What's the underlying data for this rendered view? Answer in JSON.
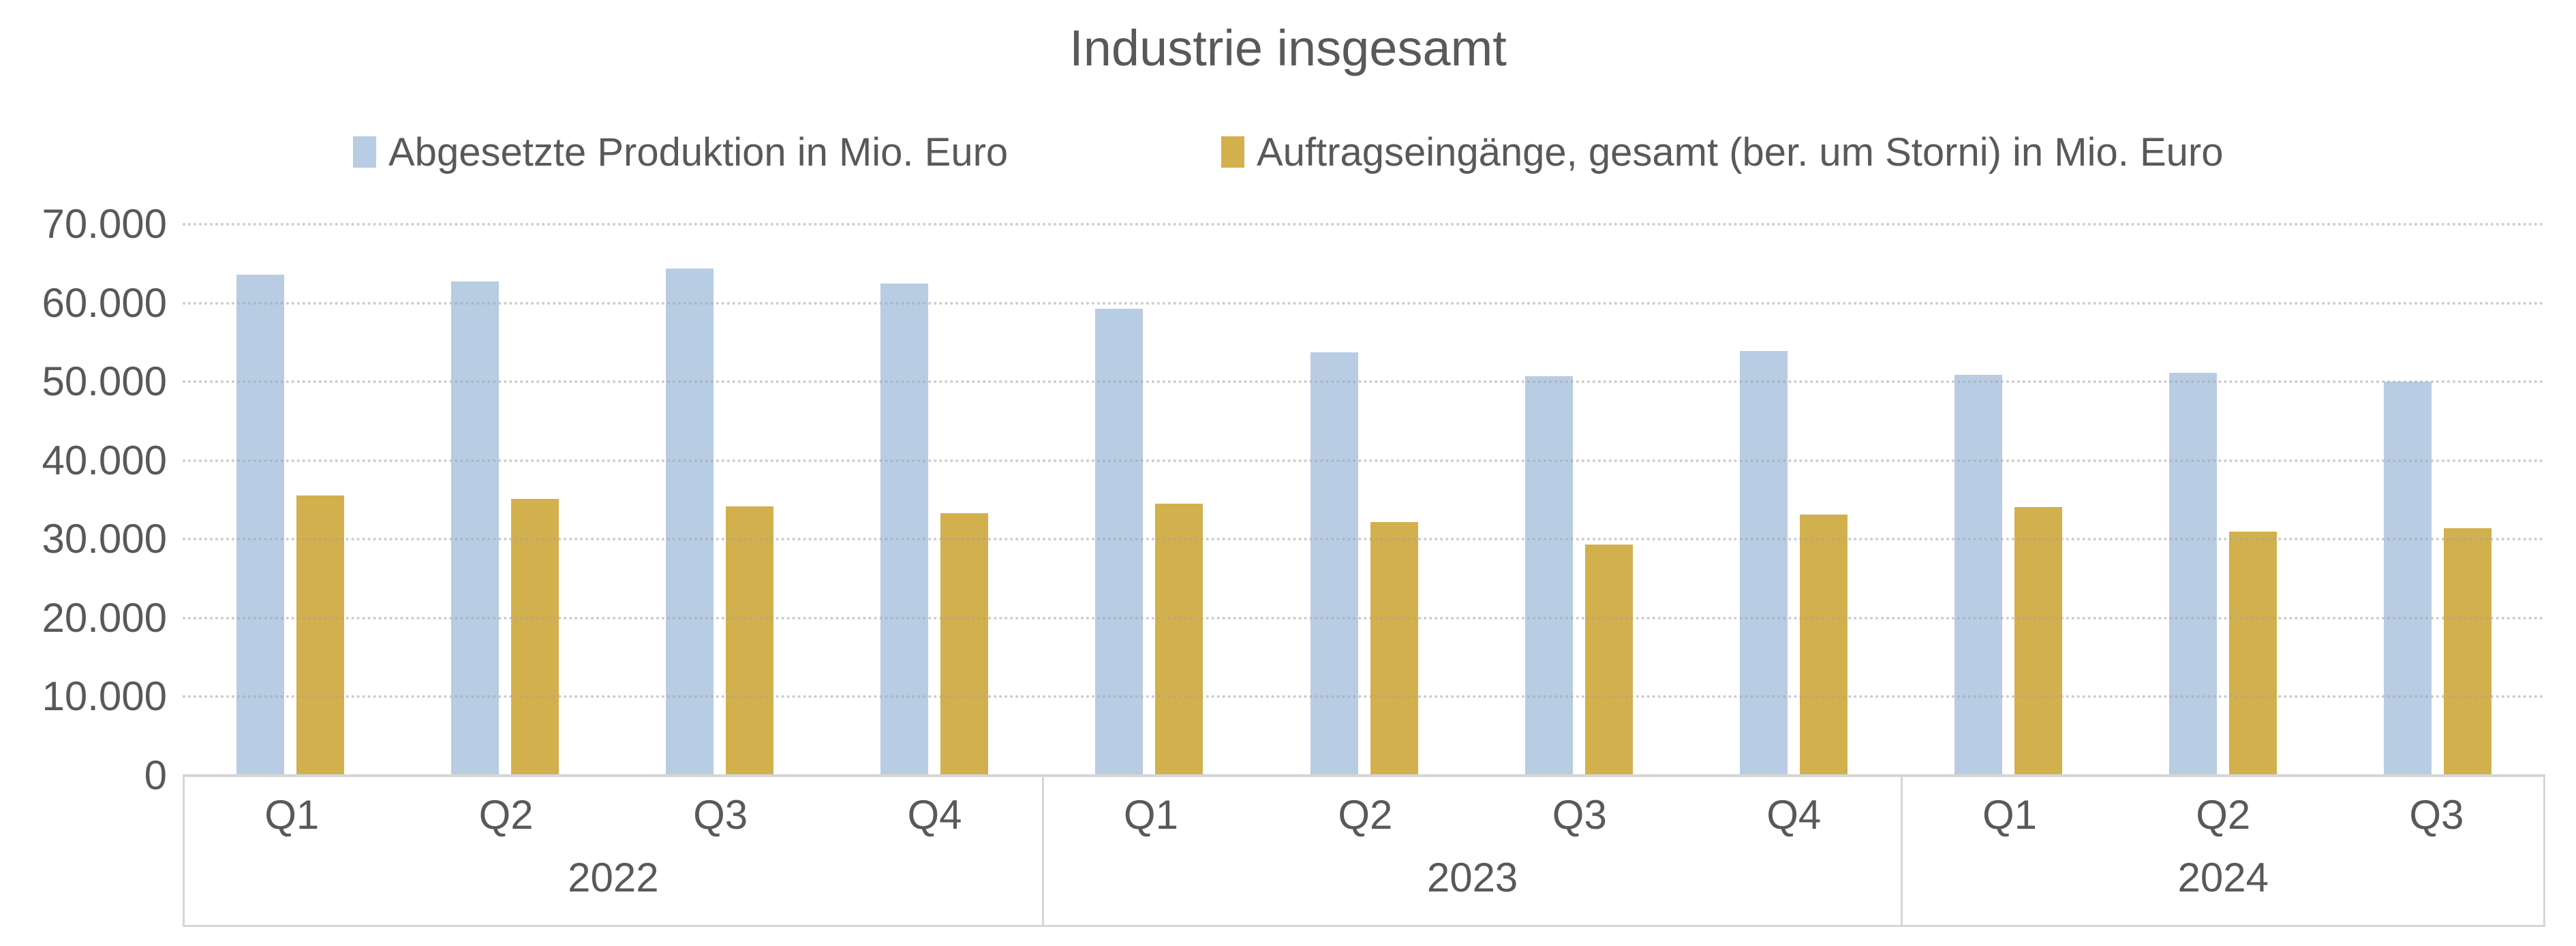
{
  "title": "Industrie insgesamt",
  "colors": {
    "production": "#B8CCE4",
    "orders": "#D2B04D",
    "text": "#595959",
    "grid": "#C9C9C9",
    "axis": "#D6D6D6"
  },
  "legend": {
    "items": [
      {
        "key": "production",
        "label": "Abgesetzte Produktion in Mio. Euro"
      },
      {
        "key": "orders",
        "label": "Auftragseingänge, gesamt (ber. um Storni) in Mio. Euro"
      }
    ]
  },
  "chart_data": {
    "type": "bar",
    "title": "Industrie insgesamt",
    "categories": [
      "Q1",
      "Q2",
      "Q3",
      "Q4",
      "Q1",
      "Q2",
      "Q3",
      "Q4",
      "Q1",
      "Q2",
      "Q3"
    ],
    "year_groups": [
      {
        "label": "2022",
        "quarters": 4
      },
      {
        "label": "2023",
        "quarters": 4
      },
      {
        "label": "2024",
        "quarters": 3
      }
    ],
    "series": [
      {
        "name": "Abgesetzte Produktion in Mio. Euro",
        "color": "#B8CCE4",
        "values": [
          63600,
          62700,
          64400,
          62500,
          59300,
          53700,
          50700,
          53900,
          50900,
          51100,
          50000
        ]
      },
      {
        "name": "Auftragseingänge, gesamt (ber. um Storni) in Mio. Euro",
        "color": "#D2B04D",
        "values": [
          35600,
          35100,
          34200,
          33300,
          34500,
          32200,
          29300,
          33100,
          34100,
          31000,
          31400
        ]
      }
    ],
    "xlabel": "",
    "ylabel": "",
    "ylim": [
      0,
      70000
    ],
    "ytick_step": 10000,
    "ytick_labels": [
      "0",
      "10.000",
      "20.000",
      "30.000",
      "40.000",
      "50.000",
      "60.000",
      "70.000"
    ],
    "grid": "horizontal-dotted",
    "legend_position": "top"
  }
}
